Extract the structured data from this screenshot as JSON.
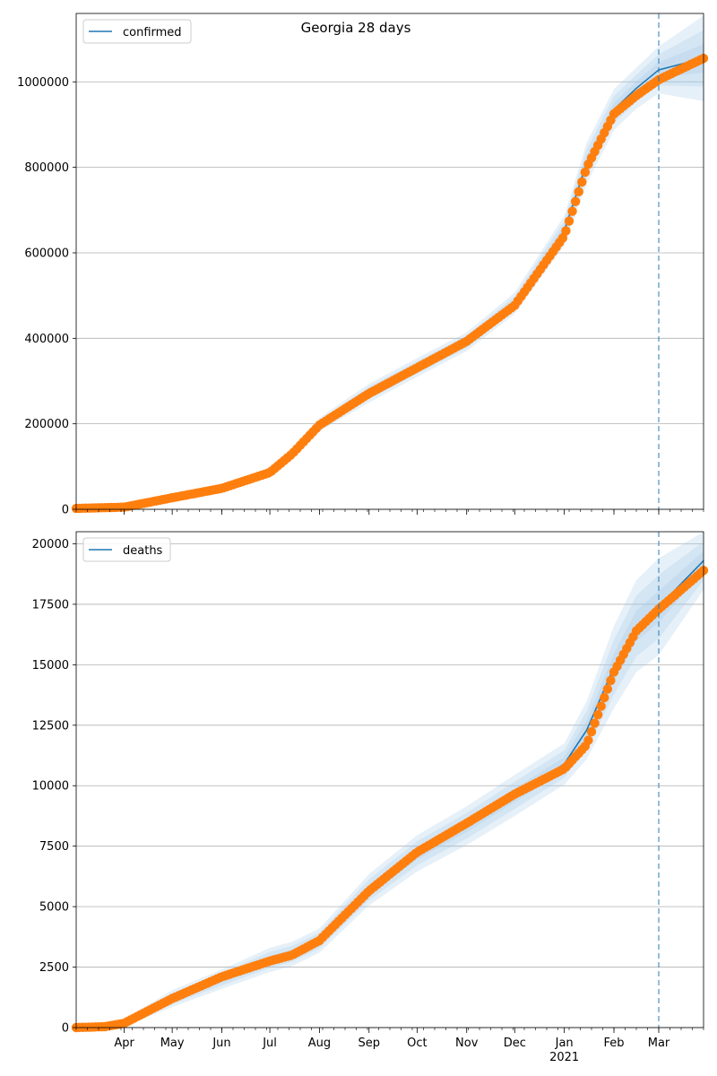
{
  "figure": {
    "title": "Georgia 28 days"
  },
  "colors": {
    "model_line": "#1f77b4",
    "band": "#a6c8e6",
    "observed": "#ff7f0e",
    "forecast_marker": "#1f77b4",
    "grid": "#b0b0b0"
  },
  "x_axis": {
    "month_labels": [
      "Apr",
      "May",
      "Jun",
      "Jul",
      "Aug",
      "Sep",
      "Oct",
      "Nov",
      "Dec",
      "Jan",
      "Feb",
      "Mar"
    ],
    "year_label": "2021",
    "range": [
      "2020-03-02",
      "2021-03-29"
    ],
    "forecast_start": "2021-03-01"
  },
  "chart_data": [
    {
      "type": "line",
      "legend": [
        "confirmed"
      ],
      "legend_position": "upper-left",
      "grid": "horizontal",
      "ylim": [
        0,
        1160000
      ],
      "y_ticks": [
        0,
        200000,
        400000,
        600000,
        800000,
        1000000
      ],
      "y_tick_labels": [
        "0",
        "200000",
        "400000",
        "600000",
        "800000",
        "1000000"
      ],
      "x_dates": [
        "2020-03-02",
        "2020-04-01",
        "2020-05-01",
        "2020-06-01",
        "2020-07-01",
        "2020-07-15",
        "2020-08-01",
        "2020-09-01",
        "2020-10-01",
        "2020-11-01",
        "2020-12-01",
        "2021-01-01",
        "2021-01-15",
        "2021-02-01",
        "2021-02-15",
        "2021-03-01",
        "2021-03-29"
      ],
      "series": [
        {
          "name": "confirmed",
          "kind": "model",
          "values": [
            2000,
            5000,
            28000,
            50000,
            87000,
            130000,
            198000,
            272000,
            332000,
            392000,
            482000,
            652000,
            810000,
            935000,
            985000,
            1028000,
            1055000
          ]
        },
        {
          "kind": "observed",
          "values": [
            2000,
            5000,
            27000,
            49000,
            86000,
            130000,
            197000,
            271000,
            331000,
            393000,
            477000,
            640000,
            800000,
            925000,
            968000,
            1005000,
            1055000
          ]
        }
      ],
      "band_halfwidth": [
        500,
        1500,
        4000,
        6000,
        8000,
        12000,
        16000,
        22000,
        22000,
        22000,
        25000,
        35000,
        48000,
        48000,
        48000,
        55000,
        100000
      ]
    },
    {
      "type": "line",
      "legend": [
        "deaths"
      ],
      "legend_position": "upper-left",
      "grid": "horizontal",
      "ylim": [
        0,
        20500
      ],
      "y_ticks": [
        0,
        2500,
        5000,
        7500,
        10000,
        12500,
        15000,
        17500,
        20000
      ],
      "y_tick_labels": [
        "0",
        "2500",
        "5000",
        "7500",
        "10000",
        "12500",
        "15000",
        "17500",
        "20000"
      ],
      "x_dates": [
        "2020-03-02",
        "2020-03-20",
        "2020-04-01",
        "2020-05-01",
        "2020-06-01",
        "2020-07-01",
        "2020-07-15",
        "2020-08-01",
        "2020-09-01",
        "2020-10-01",
        "2020-11-01",
        "2020-12-01",
        "2021-01-01",
        "2021-01-15",
        "2021-02-01",
        "2021-02-15",
        "2021-03-01",
        "2021-03-29"
      ],
      "series": [
        {
          "name": "deaths",
          "kind": "model",
          "values": [
            0,
            50,
            200,
            1200,
            2000,
            2800,
            3050,
            3600,
            5700,
            7200,
            8350,
            9600,
            10900,
            12300,
            14900,
            16600,
            17400,
            19300
          ]
        },
        {
          "kind": "observed",
          "values": [
            0,
            40,
            180,
            1200,
            2100,
            2750,
            3000,
            3600,
            5650,
            7250,
            8450,
            9650,
            10700,
            11700,
            14700,
            16400,
            17300,
            18900
          ]
        }
      ],
      "band_halfwidth": [
        0,
        30,
        150,
        350,
        400,
        500,
        500,
        500,
        650,
        750,
        800,
        850,
        850,
        1200,
        1700,
        1900,
        2000,
        1200
      ]
    }
  ]
}
